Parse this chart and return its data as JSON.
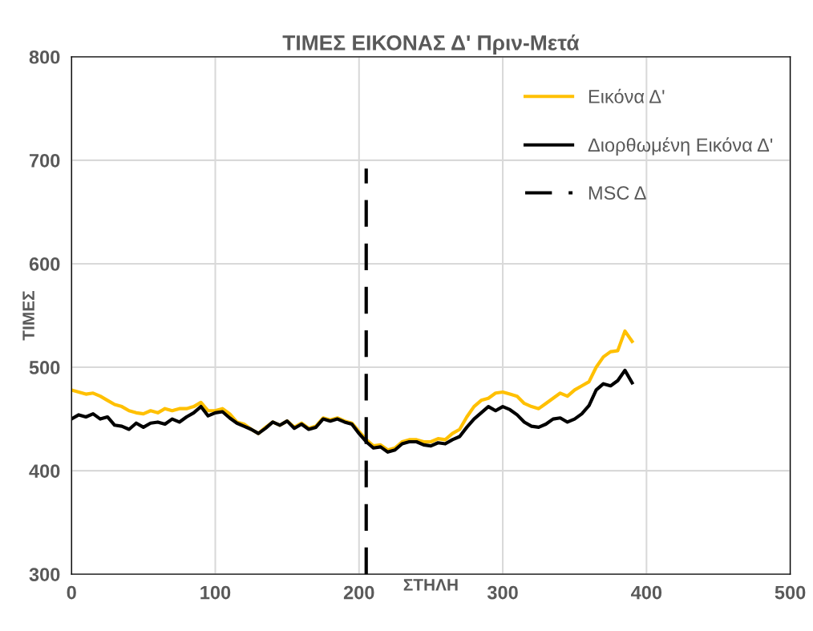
{
  "chart_data": {
    "type": "line",
    "title": "ΤΙΜΕΣ ΕΙΚΟΝΑΣ Δ' Πριν-Μετά",
    "xlabel": "ΣΤΗΛΗ",
    "ylabel": "ΤΙΜΕΣ",
    "x": [
      0,
      5,
      10,
      15,
      20,
      25,
      30,
      35,
      40,
      45,
      50,
      55,
      60,
      65,
      70,
      75,
      80,
      85,
      90,
      95,
      100,
      105,
      110,
      115,
      120,
      125,
      130,
      135,
      140,
      145,
      150,
      155,
      160,
      165,
      170,
      175,
      180,
      185,
      190,
      195,
      200,
      205,
      210,
      215,
      220,
      225,
      230,
      235,
      240,
      245,
      250,
      255,
      260,
      265,
      270,
      275,
      280,
      285,
      290,
      295,
      300,
      305,
      310,
      315,
      320,
      325,
      330,
      335,
      340,
      345,
      350,
      355,
      360,
      365,
      370,
      375,
      380,
      385,
      390
    ],
    "series": [
      {
        "name": "Εικόνα Δ'",
        "color": "#ffc000",
        "line_style": "solid",
        "values": [
          478,
          476,
          474,
          475,
          472,
          468,
          464,
          462,
          458,
          456,
          455,
          458,
          456,
          460,
          458,
          460,
          460,
          462,
          466,
          458,
          458,
          460,
          455,
          447,
          445,
          440,
          436,
          442,
          447,
          444,
          448,
          442,
          446,
          441,
          443,
          451,
          449,
          451,
          448,
          446,
          438,
          430,
          424,
          425,
          420,
          422,
          428,
          430,
          430,
          428,
          428,
          431,
          430,
          436,
          440,
          452,
          462,
          468,
          470,
          475,
          476,
          474,
          472,
          465,
          462,
          460,
          465,
          470,
          475,
          472,
          478,
          482,
          486,
          500,
          510,
          515,
          516,
          535,
          525
        ]
      },
      {
        "name": "Διορθωμένη Εικόνα Δ'",
        "color": "#000000",
        "line_style": "solid",
        "values": [
          450,
          454,
          452,
          455,
          450,
          452,
          444,
          443,
          440,
          446,
          442,
          446,
          447,
          445,
          450,
          447,
          452,
          456,
          462,
          453,
          456,
          457,
          451,
          446,
          443,
          440,
          436,
          441,
          447,
          444,
          448,
          441,
          445,
          440,
          442,
          450,
          448,
          450,
          447,
          445,
          436,
          428,
          422,
          423,
          418,
          420,
          426,
          428,
          428,
          425,
          424,
          427,
          426,
          430,
          433,
          442,
          450,
          456,
          462,
          458,
          462,
          459,
          454,
          447,
          443,
          442,
          445,
          450,
          451,
          447,
          450,
          455,
          463,
          478,
          484,
          482,
          487,
          497,
          485
        ]
      },
      {
        "name": "MSC Δ",
        "color": "#000000",
        "line_style": "dashed",
        "x": [
          205,
          205
        ],
        "values": [
          300,
          692
        ]
      }
    ],
    "xlim": [
      0,
      500
    ],
    "xticks": [
      0,
      100,
      200,
      300,
      400,
      500
    ],
    "ylim": [
      300,
      800
    ],
    "yticks": [
      300,
      400,
      500,
      600,
      700,
      800
    ],
    "grid": true,
    "legend": "top right",
    "marker": "none"
  }
}
